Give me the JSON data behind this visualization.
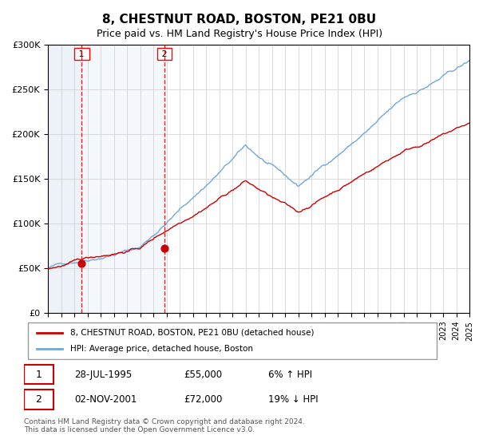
{
  "title": "8, CHESTNUT ROAD, BOSTON, PE21 0BU",
  "subtitle": "Price paid vs. HM Land Registry's House Price Index (HPI)",
  "ylabel": "",
  "title_fontsize": 11,
  "subtitle_fontsize": 9,
  "hpi_color": "#6fa8dc",
  "price_color": "#cc0000",
  "bg_hatch_color": "#dce6f4",
  "purchase1_date": 1995.57,
  "purchase1_price": 55000,
  "purchase2_date": 2001.84,
  "purchase2_price": 72000,
  "legend1": "8, CHESTNUT ROAD, BOSTON, PE21 0BU (detached house)",
  "legend2": "HPI: Average price, detached house, Boston",
  "label1_date": "28-JUL-1995",
  "label1_price": "£55,000",
  "label1_hpi": "6% ↑ HPI",
  "label2_date": "02-NOV-2001",
  "label2_price": "£72,000",
  "label2_hpi": "19% ↓ HPI",
  "footer": "Contains HM Land Registry data © Crown copyright and database right 2024.\nThis data is licensed under the Open Government Licence v3.0.",
  "xmin": 1993,
  "xmax": 2025,
  "ymin": 0,
  "ymax": 300000
}
